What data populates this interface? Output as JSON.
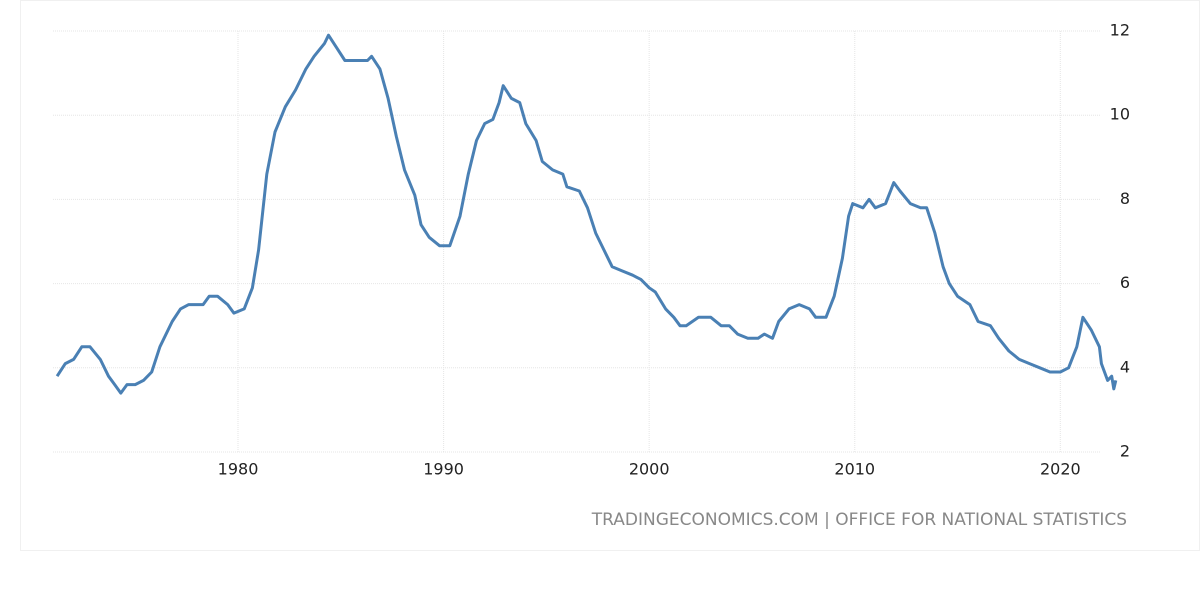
{
  "chart_data": {
    "type": "line",
    "source": "TRADINGECONOMICS.COM | OFFICE FOR NATIONAL STATISTICS",
    "x": [
      1971.2,
      1971.6,
      1972.0,
      1972.4,
      1972.8,
      1973.3,
      1973.7,
      1974.0,
      1974.3,
      1974.6,
      1975.0,
      1975.4,
      1975.8,
      1976.2,
      1976.8,
      1977.2,
      1977.6,
      1978.3,
      1978.6,
      1979.0,
      1979.5,
      1979.8,
      1980.3,
      1980.7,
      1981.0,
      1981.4,
      1981.8,
      1982.3,
      1982.8,
      1983.3,
      1983.7,
      1984.2,
      1984.4,
      1984.8,
      1985.2,
      1985.8,
      1986.3,
      1986.5,
      1986.9,
      1987.3,
      1987.7,
      1988.1,
      1988.6,
      1988.9,
      1989.3,
      1989.8,
      1990.3,
      1990.8,
      1991.2,
      1991.6,
      1992.0,
      1992.4,
      1992.7,
      1992.9,
      1993.3,
      1993.7,
      1994.0,
      1994.5,
      1994.8,
      1995.3,
      1995.8,
      1996.0,
      1996.6,
      1997.0,
      1997.4,
      1997.8,
      1998.2,
      1998.7,
      1999.2,
      1999.6,
      2000.0,
      2000.3,
      2000.8,
      2001.2,
      2001.5,
      2001.8,
      2002.4,
      2003.0,
      2003.5,
      2003.9,
      2004.3,
      2004.8,
      2005.3,
      2005.6,
      2006.0,
      2006.3,
      2006.8,
      2007.3,
      2007.8,
      2008.1,
      2008.6,
      2009.0,
      2009.4,
      2009.7,
      2009.9,
      2010.4,
      2010.7,
      2011.0,
      2011.5,
      2011.9,
      2012.2,
      2012.7,
      2013.2,
      2013.5,
      2013.9,
      2014.3,
      2014.6,
      2015.0,
      2015.6,
      2016.0,
      2016.6,
      2017.0,
      2017.5,
      2018.0,
      2018.5,
      2019.0,
      2019.5,
      2020.0,
      2020.4,
      2020.8,
      2021.1,
      2021.5,
      2021.9,
      2022.0,
      2022.3,
      2022.5,
      2022.6,
      2022.7
    ],
    "series": [
      {
        "color": "#4a80b4",
        "values": [
          3.8,
          4.1,
          4.2,
          4.5,
          4.5,
          4.2,
          3.8,
          3.6,
          3.4,
          3.6,
          3.6,
          3.7,
          3.9,
          4.5,
          5.1,
          5.4,
          5.5,
          5.5,
          5.7,
          5.7,
          5.5,
          5.3,
          5.4,
          5.9,
          6.8,
          8.6,
          9.6,
          10.2,
          10.6,
          11.1,
          11.4,
          11.7,
          11.9,
          11.6,
          11.3,
          11.3,
          11.3,
          11.4,
          11.1,
          10.4,
          9.5,
          8.7,
          8.1,
          7.4,
          7.1,
          6.9,
          6.9,
          7.6,
          8.6,
          9.4,
          9.8,
          9.9,
          10.3,
          10.7,
          10.4,
          10.3,
          9.8,
          9.4,
          8.9,
          8.7,
          8.6,
          8.3,
          8.2,
          7.8,
          7.2,
          6.8,
          6.4,
          6.3,
          6.2,
          6.1,
          5.9,
          5.8,
          5.4,
          5.2,
          5.0,
          5.0,
          5.2,
          5.2,
          5.0,
          5.0,
          4.8,
          4.7,
          4.7,
          4.8,
          4.7,
          5.1,
          5.4,
          5.5,
          5.4,
          5.2,
          5.2,
          5.7,
          6.6,
          7.6,
          7.9,
          7.8,
          8.0,
          7.8,
          7.9,
          8.4,
          8.2,
          7.9,
          7.8,
          7.8,
          7.2,
          6.4,
          6.0,
          5.7,
          5.5,
          5.1,
          5.0,
          4.7,
          4.4,
          4.2,
          4.1,
          4.0,
          3.9,
          3.9,
          4.0,
          4.5,
          5.2,
          4.9,
          4.5,
          4.1,
          3.7,
          3.8,
          3.5,
          3.7
        ]
      }
    ],
    "xlim": [
      1971,
      2023
    ],
    "xticks": [
      1980,
      1990,
      2000,
      2010,
      2020
    ],
    "ylim": [
      2,
      12
    ],
    "yticks": [
      2,
      4,
      6,
      8,
      10,
      12
    ],
    "grid": true
  }
}
